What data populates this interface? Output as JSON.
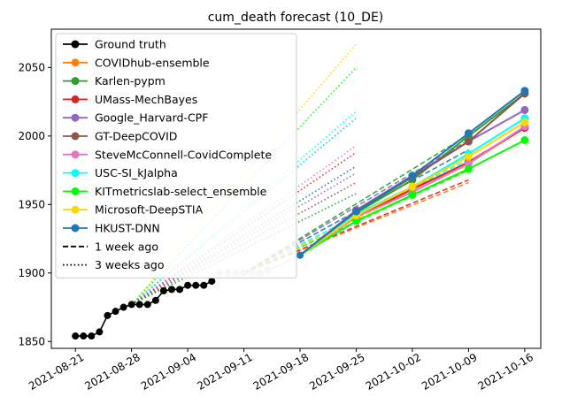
{
  "chart_data": {
    "type": "line",
    "title": "cum_death forecast (10_DE)",
    "xlabel": "",
    "ylabel": "",
    "xlim": [
      "2021-08-18",
      "2021-10-18"
    ],
    "ylim": [
      1845,
      2078
    ],
    "x_ticks": [
      "2021-08-21",
      "2021-08-28",
      "2021-09-04",
      "2021-09-11",
      "2021-09-18",
      "2021-09-25",
      "2021-10-02",
      "2021-10-09",
      "2021-10-16"
    ],
    "y_ticks": [
      1850,
      1900,
      1950,
      2000,
      2050
    ],
    "grid": false,
    "legend_position": "top-left",
    "ground_truth": {
      "name": "Ground truth",
      "color": "#000000",
      "x": [
        "2021-08-21",
        "2021-08-22",
        "2021-08-23",
        "2021-08-24",
        "2021-08-25",
        "2021-08-26",
        "2021-08-27",
        "2021-08-28",
        "2021-08-29",
        "2021-08-30",
        "2021-08-31",
        "2021-09-01",
        "2021-09-02",
        "2021-09-03",
        "2021-09-04",
        "2021-09-05",
        "2021-09-06",
        "2021-09-07"
      ],
      "y": [
        1854,
        1854,
        1854,
        1857,
        1869,
        1872,
        1875,
        1877,
        1877,
        1877,
        1880,
        1887,
        1888,
        1888,
        1891,
        1891,
        1891,
        1894
      ]
    },
    "ground_truth_later": {
      "color": "#c8c8c8",
      "x": [
        "2021-09-08",
        "2021-09-09",
        "2021-09-10",
        "2021-09-11",
        "2021-09-12",
        "2021-09-13",
        "2021-09-14"
      ],
      "y": [
        1900,
        1900,
        1900,
        1900,
        1900,
        1900,
        1902
      ]
    },
    "forecast_start": {
      "x": "2021-09-18",
      "y": 1913
    },
    "series": [
      {
        "name": "COVIDhub-ensemble",
        "color": "#ff7f0e",
        "x": [
          "2021-09-25",
          "2021-10-02",
          "2021-10-09",
          "2021-10-16"
        ],
        "y": [
          1943,
          1962,
          1980,
          2006
        ]
      },
      {
        "name": "Karlen-pypm",
        "color": "#2ca02c",
        "x": [
          "2021-09-25",
          "2021-10-02",
          "2021-10-09",
          "2021-10-16"
        ],
        "y": [
          1944,
          1968,
          2000,
          2031
        ]
      },
      {
        "name": "UMass-MechBayes",
        "color": "#d62728",
        "x": [
          "2021-09-25",
          "2021-10-02",
          "2021-10-09",
          "2021-10-16"
        ],
        "y": [
          1941,
          1961,
          1981,
          2006
        ]
      },
      {
        "name": "Google_Harvard-CPF",
        "color": "#9467bd",
        "x": [
          "2021-09-25",
          "2021-10-02",
          "2021-10-09",
          "2021-10-16"
        ],
        "y": [
          1946,
          1971,
          1996,
          2019
        ]
      },
      {
        "name": "GT-DeepCOVID",
        "color": "#8c564b",
        "x": [
          "2021-09-25",
          "2021-10-02",
          "2021-10-09",
          "2021-10-16"
        ],
        "y": [
          1945,
          1970,
          1996,
          2031
        ]
      },
      {
        "name": "SteveMcConnell-CovidComplete",
        "color": "#e377c2",
        "x": [
          "2021-09-25",
          "2021-10-02",
          "2021-10-09",
          "2021-10-16"
        ],
        "y": [
          1941,
          1959,
          1980,
          2007
        ]
      },
      {
        "name": "USC-SI_kJalpha",
        "color": "#00ffff",
        "x": [
          "2021-09-25",
          "2021-10-02",
          "2021-10-09",
          "2021-10-16"
        ],
        "y": [
          1943,
          1963,
          1987,
          2013
        ]
      },
      {
        "name": "KITmetricslab-select_ensemble",
        "color": "#00ff00",
        "x": [
          "2021-09-25",
          "2021-10-02",
          "2021-10-09",
          "2021-10-16"
        ],
        "y": [
          1938,
          1957,
          1976,
          1997
        ]
      },
      {
        "name": "Microsoft-DeepSTIA",
        "color": "#ffd700",
        "x": [
          "2021-09-25",
          "2021-10-02",
          "2021-10-09",
          "2021-10-16"
        ],
        "y": [
          1942,
          1963,
          1985,
          2010
        ]
      },
      {
        "name": "HKUST-DNN",
        "color": "#1f77b4",
        "x": [
          "2021-09-25",
          "2021-10-02",
          "2021-10-09",
          "2021-10-16"
        ],
        "y": [
          1945,
          1971,
          2002,
          2033
        ]
      }
    ],
    "one_week_ago": [
      {
        "color": "#ff7f0e",
        "x0": "2021-09-11",
        "y0": 1900,
        "x1": "2021-10-09",
        "y1": 1966
      },
      {
        "color": "#d62728",
        "x0": "2021-09-11",
        "y0": 1900,
        "x1": "2021-10-09",
        "y1": 1968
      },
      {
        "color": "#2ca02c",
        "x0": "2021-09-11",
        "y0": 1900,
        "x1": "2021-10-09",
        "y1": 2001
      },
      {
        "color": "#9467bd",
        "x0": "2021-09-11",
        "y0": 1900,
        "x1": "2021-10-09",
        "y1": 1997
      },
      {
        "color": "#00ff00",
        "x0": "2021-09-11",
        "y0": 1900,
        "x1": "2021-10-09",
        "y1": 1975
      },
      {
        "color": "#00ffff",
        "x0": "2021-09-11",
        "y0": 1900,
        "x1": "2021-10-09",
        "y1": 1983
      },
      {
        "color": "#ffd700",
        "x0": "2021-09-11",
        "y0": 1900,
        "x1": "2021-10-09",
        "y1": 1979
      },
      {
        "color": "#1f77b4",
        "x0": "2021-09-11",
        "y0": 1900,
        "x1": "2021-10-09",
        "y1": 1990
      }
    ],
    "three_weeks_ago": [
      {
        "color": "#ffd700",
        "x0": "2021-08-28",
        "y0": 1877,
        "x1": "2021-09-25",
        "y1": 2067
      },
      {
        "color": "#00ff00",
        "x0": "2021-08-28",
        "y0": 1877,
        "x1": "2021-09-25",
        "y1": 2050
      },
      {
        "color": "#00ffff",
        "x0": "2021-08-28",
        "y0": 1877,
        "x1": "2021-09-25",
        "y1": 2018
      },
      {
        "color": "#00cccc",
        "x0": "2021-08-28",
        "y0": 1877,
        "x1": "2021-09-25",
        "y1": 2013
      },
      {
        "color": "#e377c2",
        "x0": "2021-08-28",
        "y0": 1877,
        "x1": "2021-09-25",
        "y1": 1993
      },
      {
        "color": "#d62728",
        "x0": "2021-08-28",
        "y0": 1877,
        "x1": "2021-09-25",
        "y1": 1988
      },
      {
        "color": "#1f77b4",
        "x0": "2021-08-28",
        "y0": 1877,
        "x1": "2021-09-25",
        "y1": 1978
      },
      {
        "color": "#9467bd",
        "x0": "2021-08-28",
        "y0": 1877,
        "x1": "2021-09-25",
        "y1": 1973
      },
      {
        "color": "#8c564b",
        "x0": "2021-08-28",
        "y0": 1877,
        "x1": "2021-09-25",
        "y1": 1966
      },
      {
        "color": "#2ca02c",
        "x0": "2021-08-28",
        "y0": 1877,
        "x1": "2021-09-25",
        "y1": 1958
      }
    ],
    "legend": [
      {
        "label": "Ground truth",
        "color": "#000000",
        "style": "marker"
      },
      {
        "label": "COVIDhub-ensemble",
        "color": "#ff7f0e",
        "style": "marker"
      },
      {
        "label": "Karlen-pypm",
        "color": "#2ca02c",
        "style": "marker"
      },
      {
        "label": "UMass-MechBayes",
        "color": "#d62728",
        "style": "marker"
      },
      {
        "label": "Google_Harvard-CPF",
        "color": "#9467bd",
        "style": "marker"
      },
      {
        "label": "GT-DeepCOVID",
        "color": "#8c564b",
        "style": "marker"
      },
      {
        "label": "SteveMcConnell-CovidComplete",
        "color": "#e377c2",
        "style": "marker"
      },
      {
        "label": "USC-SI_kJalpha",
        "color": "#00ffff",
        "style": "marker"
      },
      {
        "label": "KITmetricslab-select_ensemble",
        "color": "#00ff00",
        "style": "marker"
      },
      {
        "label": "Microsoft-DeepSTIA",
        "color": "#ffd700",
        "style": "marker"
      },
      {
        "label": "HKUST-DNN",
        "color": "#1f77b4",
        "style": "marker"
      },
      {
        "label": "1 week ago",
        "color": "#000000",
        "style": "dashed"
      },
      {
        "label": "3 weeks ago",
        "color": "#000000",
        "style": "dotted"
      }
    ]
  }
}
